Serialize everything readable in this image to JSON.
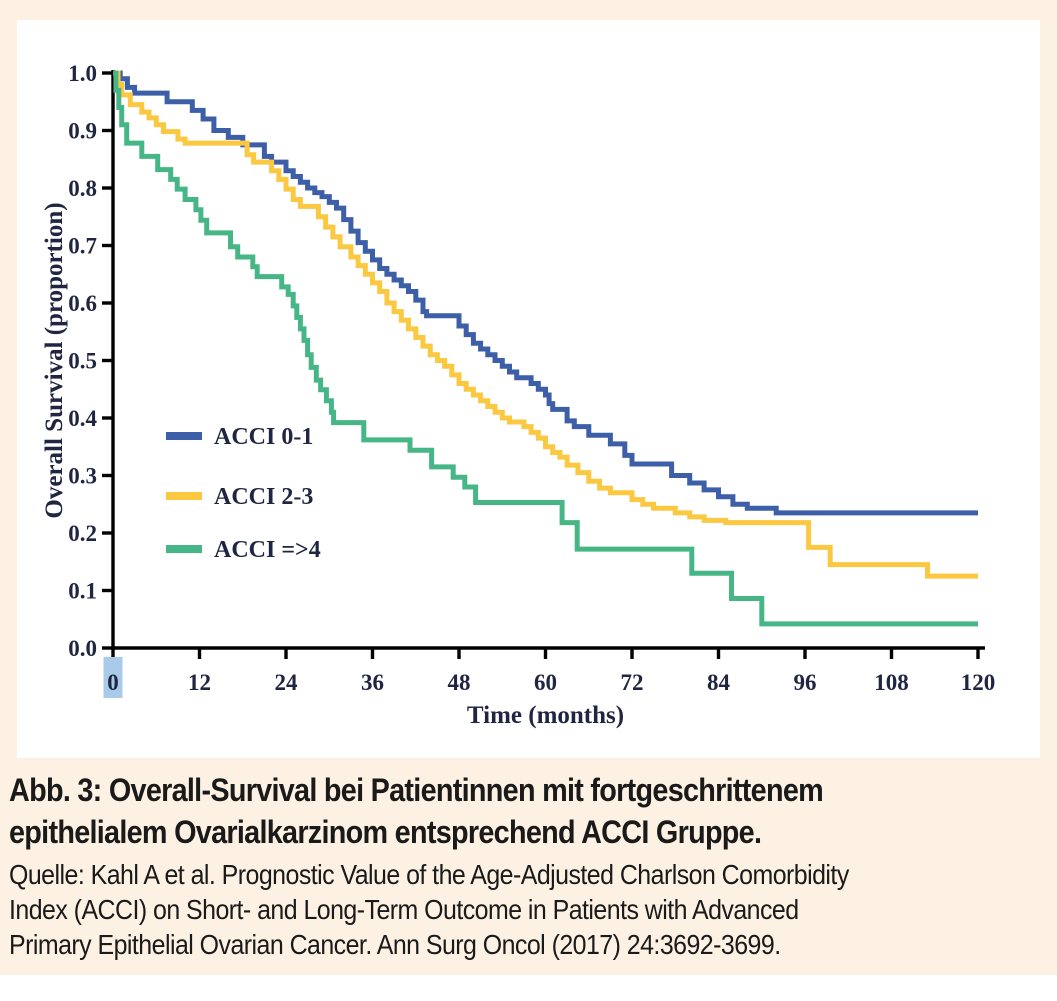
{
  "figure": {
    "caption_title_line1": "Abb. 3: Overall-Survival bei Patientinnen mit fortgeschrittenem",
    "caption_title_line2": "epithelialem Ovarialkarzinom entsprechend ACCI Gruppe.",
    "source_line1": "Quelle: Kahl A et al. Prognostic Value of the Age-Adjusted Charlson Comorbidity",
    "source_line2": "Index (ACCI) on Short- and Long-Term Outcome in Patients with Advanced",
    "source_line3": "Primary Epithelial Ovarian Cancer. Ann Surg Oncol (2017) 24:3692-3699."
  },
  "colors": {
    "background_cream": "#fcf1e2",
    "panel_white": "#ffffff",
    "axis_black": "#000000",
    "chart_text": "#202642",
    "caption_text": "#1a1a1a",
    "tick_highlight": "#a9cbe9",
    "acci_0_1_blue": "#3c5fa7",
    "acci_2_3_yellow": "#fbc841",
    "acci_4_green": "#47b687"
  },
  "chart_data": {
    "type": "line",
    "subtype": "kaplan-meier-step",
    "title": "",
    "xlabel": "Time (months)",
    "ylabel": "Overall Survival (proportion)",
    "xlim": [
      0,
      120
    ],
    "ylim": [
      0.0,
      1.0
    ],
    "x_ticks": [
      0,
      12,
      24,
      36,
      48,
      60,
      72,
      84,
      96,
      108,
      120
    ],
    "y_ticks": [
      "0.0",
      "0.1",
      "0.2",
      "0.3",
      "0.4",
      "0.5",
      "0.6",
      "0.7",
      "0.8",
      "0.9",
      "1.0"
    ],
    "grid": false,
    "legend_position": "left-middle",
    "highlighted_x_tick": "0",
    "series": [
      {
        "name": "ACCI 0-1",
        "color": "#3c5fa7",
        "points": [
          [
            0,
            1.0
          ],
          [
            1,
            0.99
          ],
          [
            2,
            0.975
          ],
          [
            3,
            0.965
          ],
          [
            7.5,
            0.95
          ],
          [
            11,
            0.935
          ],
          [
            12.5,
            0.92
          ],
          [
            14,
            0.9
          ],
          [
            16,
            0.888
          ],
          [
            18,
            0.875
          ],
          [
            21,
            0.855
          ],
          [
            22,
            0.845
          ],
          [
            24,
            0.83
          ],
          [
            25,
            0.82
          ],
          [
            26,
            0.81
          ],
          [
            27,
            0.8
          ],
          [
            28,
            0.792
          ],
          [
            29,
            0.785
          ],
          [
            30,
            0.775
          ],
          [
            31,
            0.765
          ],
          [
            32,
            0.745
          ],
          [
            33,
            0.725
          ],
          [
            34,
            0.705
          ],
          [
            35,
            0.69
          ],
          [
            36,
            0.675
          ],
          [
            37,
            0.66
          ],
          [
            38,
            0.65
          ],
          [
            39,
            0.64
          ],
          [
            40,
            0.63
          ],
          [
            41,
            0.62
          ],
          [
            42,
            0.605
          ],
          [
            43,
            0.585
          ],
          [
            43.5,
            0.578
          ],
          [
            48,
            0.56
          ],
          [
            49,
            0.545
          ],
          [
            50,
            0.53
          ],
          [
            51,
            0.52
          ],
          [
            52,
            0.51
          ],
          [
            53,
            0.5
          ],
          [
            54,
            0.49
          ],
          [
            55,
            0.48
          ],
          [
            56,
            0.47
          ],
          [
            58,
            0.46
          ],
          [
            59,
            0.45
          ],
          [
            60,
            0.44
          ],
          [
            60.5,
            0.425
          ],
          [
            61,
            0.415
          ],
          [
            63,
            0.395
          ],
          [
            64,
            0.385
          ],
          [
            66,
            0.37
          ],
          [
            69,
            0.355
          ],
          [
            71,
            0.335
          ],
          [
            72,
            0.32
          ],
          [
            77.5,
            0.3
          ],
          [
            80,
            0.287
          ],
          [
            82,
            0.275
          ],
          [
            84,
            0.263
          ],
          [
            86,
            0.25
          ],
          [
            88,
            0.243
          ],
          [
            92,
            0.235
          ],
          [
            120,
            0.235
          ]
        ]
      },
      {
        "name": "ACCI 2-3",
        "color": "#fbc841",
        "points": [
          [
            0,
            1.0
          ],
          [
            0.7,
            0.98
          ],
          [
            1.2,
            0.962
          ],
          [
            2.4,
            0.945
          ],
          [
            4,
            0.932
          ],
          [
            5,
            0.922
          ],
          [
            6,
            0.91
          ],
          [
            7,
            0.898
          ],
          [
            9,
            0.885
          ],
          [
            10,
            0.878
          ],
          [
            18.6,
            0.858
          ],
          [
            19.5,
            0.845
          ],
          [
            22,
            0.83
          ],
          [
            23,
            0.815
          ],
          [
            24,
            0.798
          ],
          [
            25,
            0.78
          ],
          [
            26,
            0.768
          ],
          [
            28.5,
            0.75
          ],
          [
            29.5,
            0.732
          ],
          [
            30.5,
            0.715
          ],
          [
            31.5,
            0.698
          ],
          [
            33,
            0.68
          ],
          [
            34,
            0.665
          ],
          [
            35,
            0.65
          ],
          [
            36,
            0.635
          ],
          [
            37,
            0.62
          ],
          [
            38,
            0.6
          ],
          [
            39,
            0.585
          ],
          [
            40,
            0.57
          ],
          [
            41,
            0.555
          ],
          [
            42,
            0.54
          ],
          [
            43,
            0.525
          ],
          [
            44,
            0.51
          ],
          [
            45,
            0.5
          ],
          [
            46,
            0.49
          ],
          [
            47,
            0.475
          ],
          [
            48,
            0.46
          ],
          [
            49,
            0.45
          ],
          [
            50,
            0.44
          ],
          [
            51,
            0.43
          ],
          [
            52,
            0.42
          ],
          [
            53,
            0.41
          ],
          [
            54,
            0.4
          ],
          [
            55,
            0.393
          ],
          [
            57,
            0.385
          ],
          [
            58,
            0.375
          ],
          [
            59,
            0.365
          ],
          [
            60,
            0.35
          ],
          [
            61,
            0.34
          ],
          [
            62,
            0.332
          ],
          [
            63,
            0.318
          ],
          [
            64.5,
            0.305
          ],
          [
            66,
            0.29
          ],
          [
            67.5,
            0.278
          ],
          [
            69,
            0.27
          ],
          [
            72,
            0.258
          ],
          [
            73.5,
            0.25
          ],
          [
            75,
            0.243
          ],
          [
            78,
            0.235
          ],
          [
            80,
            0.228
          ],
          [
            82,
            0.222
          ],
          [
            85,
            0.218
          ],
          [
            96.5,
            0.175
          ],
          [
            99.5,
            0.145
          ],
          [
            113,
            0.125
          ],
          [
            120,
            0.125
          ]
        ]
      },
      {
        "name": "ACCI =>4",
        "color": "#47b687",
        "points": [
          [
            0,
            1.0
          ],
          [
            0.4,
            0.97
          ],
          [
            0.8,
            0.94
          ],
          [
            1.2,
            0.91
          ],
          [
            1.9,
            0.878
          ],
          [
            4,
            0.855
          ],
          [
            6.2,
            0.832
          ],
          [
            8,
            0.815
          ],
          [
            8.9,
            0.798
          ],
          [
            10,
            0.78
          ],
          [
            11.5,
            0.762
          ],
          [
            12.2,
            0.744
          ],
          [
            13,
            0.722
          ],
          [
            16.3,
            0.698
          ],
          [
            17.3,
            0.68
          ],
          [
            19.4,
            0.663
          ],
          [
            20,
            0.646
          ],
          [
            23.4,
            0.628
          ],
          [
            24.3,
            0.615
          ],
          [
            25,
            0.595
          ],
          [
            25.5,
            0.575
          ],
          [
            26,
            0.555
          ],
          [
            26.5,
            0.535
          ],
          [
            27,
            0.51
          ],
          [
            27.5,
            0.488
          ],
          [
            28.2,
            0.466
          ],
          [
            28.8,
            0.449
          ],
          [
            29.6,
            0.43
          ],
          [
            30.3,
            0.41
          ],
          [
            30.6,
            0.392
          ],
          [
            34.8,
            0.362
          ],
          [
            41.2,
            0.344
          ],
          [
            44.2,
            0.315
          ],
          [
            47.2,
            0.297
          ],
          [
            48.8,
            0.28
          ],
          [
            50.3,
            0.253
          ],
          [
            62.3,
            0.218
          ],
          [
            64.4,
            0.172
          ],
          [
            80.3,
            0.13
          ],
          [
            85.8,
            0.086
          ],
          [
            90,
            0.042
          ],
          [
            120,
            0.042
          ]
        ]
      }
    ]
  }
}
